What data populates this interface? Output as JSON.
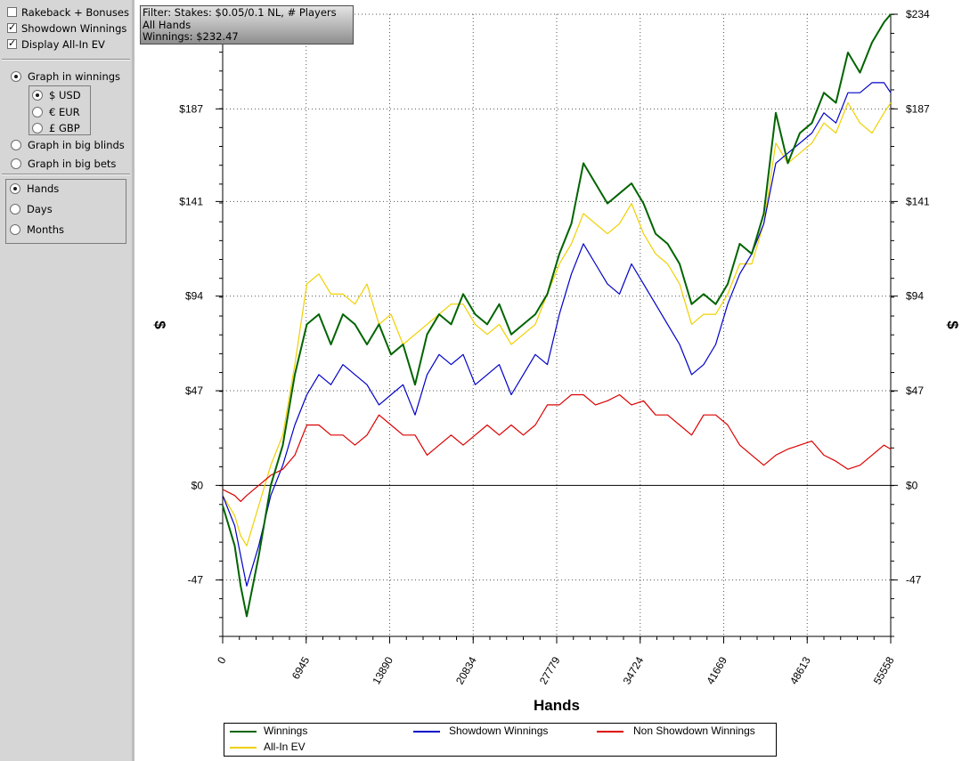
{
  "sidebar": {
    "checkboxes": [
      {
        "label": "Rakeback + Bonuses",
        "checked": false
      },
      {
        "label": "Showdown Winnings",
        "checked": true
      },
      {
        "label": "Display All-In EV",
        "checked": true
      }
    ],
    "graph_mode": [
      {
        "label": "Graph in winnings",
        "selected": true
      },
      {
        "label": "Graph in big blinds",
        "selected": false
      },
      {
        "label": "Graph in big bets",
        "selected": false
      }
    ],
    "currency": [
      {
        "label": "$ USD",
        "selected": true
      },
      {
        "label": "€ EUR",
        "selected": false
      },
      {
        "label": "£ GBP",
        "selected": false
      }
    ],
    "x_axis_mode": [
      {
        "label": "Hands",
        "selected": true
      },
      {
        "label": "Days",
        "selected": false
      },
      {
        "label": "Months",
        "selected": false
      }
    ]
  },
  "filter_box": {
    "line1": "Filter: Stakes: $0.05/0.1 NL, # Players",
    "line2": "All Hands",
    "line3": "Winnings: $232.47"
  },
  "colors": {
    "winnings": "#006400",
    "showdown": "#0000c8",
    "non_showdown": "#dc0000",
    "allin_ev": "#f0d000"
  },
  "chart_data": {
    "type": "line",
    "xlabel": "Hands",
    "ylabel": "$",
    "xlim": [
      0,
      55558
    ],
    "ylim": [
      -75,
      234
    ],
    "x_ticks": [
      0,
      6945,
      13890,
      20834,
      27779,
      34724,
      41669,
      48613,
      55558
    ],
    "x_tick_labels": [
      "0",
      "6945",
      "13890",
      "20834",
      "27779",
      "34724",
      "41669",
      "48613",
      "55558"
    ],
    "y_ticks": [
      -47,
      0,
      47,
      94,
      141,
      187,
      234
    ],
    "y_tick_labels": [
      "-47",
      "$0",
      "$47",
      "$94",
      "$141",
      "$187",
      "$234"
    ],
    "grid": true,
    "legend_position": "bottom",
    "x": [
      0,
      1000,
      1500,
      2000,
      3000,
      4000,
      5000,
      6000,
      7000,
      8000,
      9000,
      10000,
      11000,
      12000,
      13000,
      14000,
      15000,
      16000,
      17000,
      18000,
      19000,
      20000,
      21000,
      22000,
      23000,
      24000,
      25000,
      26000,
      27000,
      28000,
      29000,
      30000,
      31000,
      32000,
      33000,
      34000,
      35000,
      36000,
      37000,
      38000,
      39000,
      40000,
      41000,
      42000,
      43000,
      44000,
      45000,
      46000,
      47000,
      48000,
      49000,
      50000,
      51000,
      52000,
      53000,
      54000,
      55000,
      55558
    ],
    "series": [
      {
        "name": "Winnings",
        "color_key": "winnings",
        "values": [
          -10,
          -30,
          -50,
          -65,
          -35,
          0,
          20,
          55,
          80,
          85,
          70,
          85,
          80,
          70,
          80,
          65,
          70,
          50,
          75,
          85,
          80,
          95,
          85,
          80,
          90,
          75,
          80,
          85,
          95,
          115,
          130,
          160,
          150,
          140,
          145,
          150,
          140,
          125,
          120,
          110,
          90,
          95,
          90,
          100,
          120,
          115,
          135,
          185,
          160,
          175,
          180,
          195,
          190,
          215,
          205,
          220,
          230,
          234
        ]
      },
      {
        "name": "Showdown Winnings",
        "color_key": "showdown",
        "values": [
          -5,
          -20,
          -35,
          -50,
          -30,
          -5,
          10,
          30,
          45,
          55,
          50,
          60,
          55,
          50,
          40,
          45,
          50,
          35,
          55,
          65,
          60,
          65,
          50,
          55,
          60,
          45,
          55,
          65,
          60,
          85,
          105,
          120,
          110,
          100,
          95,
          110,
          100,
          90,
          80,
          70,
          55,
          60,
          70,
          90,
          105,
          115,
          130,
          160,
          165,
          170,
          175,
          185,
          180,
          195,
          195,
          200,
          200,
          195
        ]
      },
      {
        "name": "Non Showdown Winnings",
        "color_key": "non_showdown",
        "values": [
          -2,
          -5,
          -8,
          -5,
          0,
          5,
          8,
          15,
          30,
          30,
          25,
          25,
          20,
          25,
          35,
          30,
          25,
          25,
          15,
          20,
          25,
          20,
          25,
          30,
          25,
          30,
          25,
          30,
          40,
          40,
          45,
          45,
          40,
          42,
          45,
          40,
          42,
          35,
          35,
          30,
          25,
          35,
          35,
          30,
          20,
          15,
          10,
          15,
          18,
          20,
          22,
          15,
          12,
          8,
          10,
          15,
          20,
          18
        ]
      },
      {
        "name": "All-In EV",
        "color_key": "allin_ev",
        "values": [
          -5,
          -15,
          -25,
          -30,
          -10,
          10,
          25,
          60,
          100,
          105,
          95,
          95,
          90,
          100,
          80,
          85,
          70,
          75,
          80,
          85,
          90,
          90,
          80,
          75,
          80,
          70,
          75,
          80,
          95,
          110,
          120,
          135,
          130,
          125,
          130,
          140,
          125,
          115,
          110,
          100,
          80,
          85,
          85,
          95,
          110,
          110,
          130,
          170,
          160,
          165,
          170,
          180,
          175,
          190,
          180,
          175,
          185,
          190
        ]
      }
    ]
  },
  "legend": {
    "items": [
      "Winnings",
      "Showdown Winnings",
      "Non Showdown Winnings",
      "All-In EV"
    ]
  }
}
